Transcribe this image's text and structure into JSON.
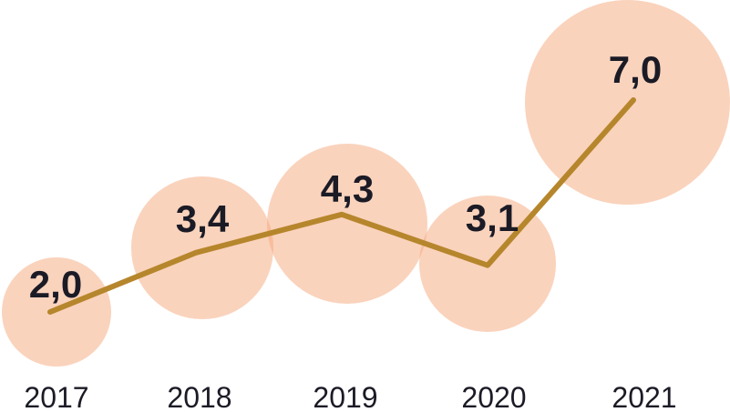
{
  "chart_data": {
    "type": "bubble-line",
    "title": "",
    "xlabel": "",
    "ylabel": "",
    "categories": [
      "2017",
      "2018",
      "2019",
      "2020",
      "2021"
    ],
    "values": [
      2.0,
      3.4,
      4.3,
      3.1,
      7.0
    ],
    "value_labels": [
      "2,0",
      "3,4",
      "4,3",
      "3,1",
      "7,0"
    ],
    "decimal_separator": "comma",
    "bubble_sizing": "area proportional to value",
    "ylim": [
      0,
      9.4
    ],
    "grid": false,
    "legend": "none",
    "colors": {
      "bubble_fill": "#FAD4BE",
      "bubble_fill_rgba": "rgba(245,168,124,0.5)",
      "line": "#B6862C",
      "value_label": "#1B1B26",
      "axis_label": "#1B1B26",
      "background": "#FFFFFF"
    }
  }
}
